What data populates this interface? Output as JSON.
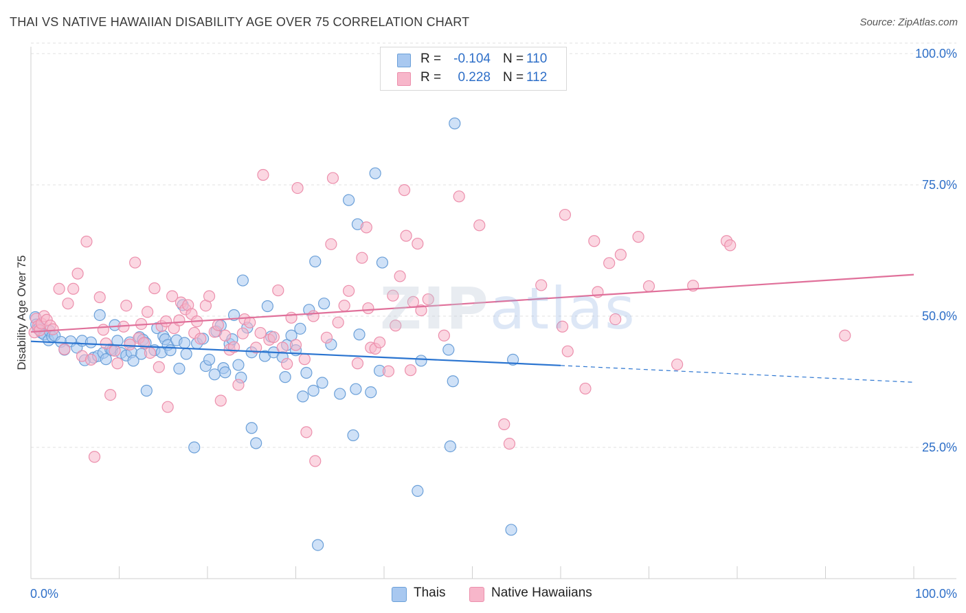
{
  "title": "THAI VS NATIVE HAWAIIAN DISABILITY AGE OVER 75 CORRELATION CHART",
  "source": "Source: ZipAtlas.com",
  "watermark": {
    "zip": "ZIP",
    "atlas": "atlas"
  },
  "legend_stats": [
    {
      "r_label": "R =",
      "r_value": "-0.104",
      "n_label": "N =",
      "n_value": "110",
      "color": "#a8c8f0"
    },
    {
      "r_label": "R =",
      "r_value": "0.228",
      "n_label": "N =",
      "n_value": "112",
      "color": "#f7b6ca"
    }
  ],
  "colors": {
    "thais_fill": "#a8c8f0",
    "thais_stroke": "#6a9fd8",
    "thais_line": "#2a74d0",
    "hawaiian_fill": "#f7b6ca",
    "hawaiian_stroke": "#ec8fac",
    "hawaiian_line": "#e0709a",
    "tick_label": "#2e6fc8",
    "grid": "#e0e0e0"
  },
  "chart_data": {
    "type": "scatter",
    "title": "THAI VS NATIVE HAWAIIAN DISABILITY AGE OVER 75 CORRELATION CHART",
    "xlabel": "",
    "ylabel": "Disability Age Over 75",
    "xlim": [
      0,
      100
    ],
    "ylim": [
      0,
      102
    ],
    "x_tick_labels": [
      "0.0%",
      "100.0%"
    ],
    "y_ticks": [
      25,
      50,
      75,
      100
    ],
    "y_tick_labels": [
      "25.0%",
      "50.0%",
      "75.0%",
      "100.0%"
    ],
    "grid": "horizontal dashed",
    "legend_position": "bottom-center",
    "series": [
      {
        "name": "Thais",
        "r": -0.104,
        "n": 110,
        "trend": {
          "x": [
            0,
            60
          ],
          "y": [
            45.2,
            40.6
          ],
          "dashed_extension_to_x": 100,
          "dashed_end_y": 37.4
        },
        "points": [
          [
            0.5,
            49.8
          ],
          [
            0.6,
            48.4
          ],
          [
            0.8,
            47.6
          ],
          [
            1.0,
            47.9
          ],
          [
            1.2,
            46.8
          ],
          [
            1.5,
            46.5
          ],
          [
            2.0,
            45.4
          ],
          [
            2.1,
            47.2
          ],
          [
            2.4,
            46.1
          ],
          [
            2.7,
            46.3
          ],
          [
            3.4,
            45.1
          ],
          [
            3.8,
            43.6
          ],
          [
            4.5,
            45.2
          ],
          [
            5.2,
            44.0
          ],
          [
            5.8,
            45.3
          ],
          [
            6.1,
            41.6
          ],
          [
            6.8,
            45.0
          ],
          [
            7.1,
            42.1
          ],
          [
            7.6,
            42.4
          ],
          [
            7.8,
            50.2
          ],
          [
            8.2,
            43.0
          ],
          [
            8.5,
            41.8
          ],
          [
            9.0,
            43.7
          ],
          [
            9.2,
            43.5
          ],
          [
            9.5,
            48.3
          ],
          [
            9.8,
            45.3
          ],
          [
            10.2,
            43.0
          ],
          [
            10.8,
            42.5
          ],
          [
            11.2,
            45.0
          ],
          [
            11.4,
            43.1
          ],
          [
            11.6,
            41.5
          ],
          [
            12.3,
            46.0
          ],
          [
            12.5,
            42.8
          ],
          [
            12.7,
            45.5
          ],
          [
            13.0,
            44.9
          ],
          [
            13.1,
            35.8
          ],
          [
            14.0,
            43.5
          ],
          [
            14.3,
            47.7
          ],
          [
            14.8,
            43.1
          ],
          [
            15.0,
            46.2
          ],
          [
            15.2,
            45.6
          ],
          [
            15.5,
            44.5
          ],
          [
            15.8,
            43.5
          ],
          [
            16.5,
            45.4
          ],
          [
            16.8,
            40.0
          ],
          [
            17.2,
            52.1
          ],
          [
            17.4,
            44.9
          ],
          [
            17.6,
            42.8
          ],
          [
            18.5,
            25.0
          ],
          [
            18.8,
            44.8
          ],
          [
            19.5,
            45.7
          ],
          [
            19.8,
            40.5
          ],
          [
            20.2,
            41.7
          ],
          [
            20.8,
            38.9
          ],
          [
            21.0,
            47.1
          ],
          [
            21.5,
            48.2
          ],
          [
            21.8,
            40.1
          ],
          [
            22.0,
            39.3
          ],
          [
            22.5,
            44.7
          ],
          [
            22.8,
            45.6
          ],
          [
            23.0,
            50.2
          ],
          [
            23.5,
            40.7
          ],
          [
            23.8,
            38.3
          ],
          [
            24.0,
            56.8
          ],
          [
            24.5,
            47.8
          ],
          [
            25.0,
            43.1
          ],
          [
            25.0,
            28.7
          ],
          [
            25.5,
            25.8
          ],
          [
            26.5,
            42.4
          ],
          [
            26.8,
            51.9
          ],
          [
            27.2,
            46.1
          ],
          [
            27.5,
            43.1
          ],
          [
            28.5,
            42.2
          ],
          [
            28.8,
            38.4
          ],
          [
            29.0,
            44.5
          ],
          [
            29.5,
            46.3
          ],
          [
            30.0,
            43.5
          ],
          [
            30.5,
            47.6
          ],
          [
            30.8,
            34.7
          ],
          [
            31.2,
            39.2
          ],
          [
            31.5,
            51.2
          ],
          [
            32.0,
            35.8
          ],
          [
            32.2,
            60.4
          ],
          [
            32.5,
            6.4
          ],
          [
            33.0,
            37.3
          ],
          [
            33.2,
            52.4
          ],
          [
            34.0,
            44.6
          ],
          [
            35.0,
            35.2
          ],
          [
            36.0,
            72.1
          ],
          [
            36.5,
            27.3
          ],
          [
            36.8,
            36.1
          ],
          [
            37.0,
            67.5
          ],
          [
            37.2,
            46.5
          ],
          [
            38.5,
            35.5
          ],
          [
            39.0,
            77.2
          ],
          [
            39.5,
            39.6
          ],
          [
            39.8,
            60.2
          ],
          [
            43.8,
            16.7
          ],
          [
            44.2,
            41.5
          ],
          [
            47.3,
            43.6
          ],
          [
            47.5,
            25.2
          ],
          [
            47.8,
            37.6
          ],
          [
            48.0,
            86.7
          ],
          [
            54.4,
            9.3
          ],
          [
            54.6,
            41.7
          ]
        ]
      },
      {
        "name": "Native Hawaiians",
        "r": 0.228,
        "n": 112,
        "trend": {
          "x": [
            0,
            100
          ],
          "y": [
            47.0,
            57.9
          ]
        },
        "points": [
          [
            0.4,
            46.9
          ],
          [
            0.6,
            49.5
          ],
          [
            0.8,
            48.1
          ],
          [
            1.0,
            47.3
          ],
          [
            1.2,
            48.6
          ],
          [
            1.5,
            50.0
          ],
          [
            1.8,
            49.3
          ],
          [
            2.2,
            48.2
          ],
          [
            2.5,
            47.5
          ],
          [
            3.2,
            55.2
          ],
          [
            3.8,
            43.7
          ],
          [
            4.2,
            52.4
          ],
          [
            4.8,
            55.2
          ],
          [
            5.3,
            58.1
          ],
          [
            5.8,
            42.4
          ],
          [
            6.3,
            64.2
          ],
          [
            6.8,
            41.7
          ],
          [
            7.2,
            23.2
          ],
          [
            7.8,
            53.6
          ],
          [
            8.2,
            47.4
          ],
          [
            8.5,
            44.8
          ],
          [
            9.0,
            35.0
          ],
          [
            9.5,
            43.4
          ],
          [
            9.8,
            41.0
          ],
          [
            10.5,
            48.0
          ],
          [
            10.8,
            52.0
          ],
          [
            11.2,
            44.6
          ],
          [
            11.8,
            60.2
          ],
          [
            12.2,
            45.8
          ],
          [
            12.5,
            48.5
          ],
          [
            12.8,
            44.9
          ],
          [
            13.2,
            50.8
          ],
          [
            13.5,
            43.0
          ],
          [
            14.0,
            55.3
          ],
          [
            14.5,
            40.3
          ],
          [
            14.8,
            48.1
          ],
          [
            15.3,
            49.0
          ],
          [
            15.5,
            32.7
          ],
          [
            16.0,
            53.8
          ],
          [
            16.2,
            47.7
          ],
          [
            16.8,
            49.2
          ],
          [
            17.0,
            52.6
          ],
          [
            17.5,
            51.3
          ],
          [
            17.8,
            52.1
          ],
          [
            18.2,
            50.4
          ],
          [
            18.5,
            46.8
          ],
          [
            18.8,
            49.0
          ],
          [
            19.2,
            45.7
          ],
          [
            19.8,
            52.0
          ],
          [
            20.2,
            53.8
          ],
          [
            20.8,
            47.0
          ],
          [
            21.2,
            48.3
          ],
          [
            21.5,
            33.9
          ],
          [
            22.0,
            46.3
          ],
          [
            22.5,
            43.6
          ],
          [
            23.0,
            44.1
          ],
          [
            23.5,
            36.9
          ],
          [
            24.0,
            46.7
          ],
          [
            24.2,
            49.4
          ],
          [
            24.8,
            48.8
          ],
          [
            25.5,
            44.0
          ],
          [
            26.0,
            46.8
          ],
          [
            26.3,
            76.9
          ],
          [
            27.0,
            45.5
          ],
          [
            27.5,
            46.0
          ],
          [
            28.0,
            54.9
          ],
          [
            28.5,
            44.0
          ],
          [
            29.0,
            40.9
          ],
          [
            29.5,
            49.7
          ],
          [
            30.0,
            44.5
          ],
          [
            30.2,
            74.4
          ],
          [
            31.0,
            41.8
          ],
          [
            31.2,
            27.9
          ],
          [
            32.0,
            50.0
          ],
          [
            32.2,
            22.4
          ],
          [
            33.5,
            45.9
          ],
          [
            34.0,
            63.7
          ],
          [
            34.2,
            76.3
          ],
          [
            34.8,
            48.8
          ],
          [
            35.5,
            52.0
          ],
          [
            36.0,
            54.8
          ],
          [
            37.0,
            41.0
          ],
          [
            37.5,
            61.1
          ],
          [
            38.0,
            66.9
          ],
          [
            38.2,
            51.5
          ],
          [
            38.5,
            44.0
          ],
          [
            39.0,
            43.8
          ],
          [
            39.5,
            45.0
          ],
          [
            40.5,
            39.5
          ],
          [
            41.0,
            53.9
          ],
          [
            41.3,
            48.2
          ],
          [
            41.8,
            57.6
          ],
          [
            42.3,
            74.0
          ],
          [
            42.5,
            65.3
          ],
          [
            43.0,
            39.7
          ],
          [
            43.3,
            52.7
          ],
          [
            43.8,
            63.8
          ],
          [
            44.2,
            51.1
          ],
          [
            45.0,
            53.2
          ],
          [
            46.8,
            46.3
          ],
          [
            48.5,
            72.8
          ],
          [
            50.8,
            67.3
          ],
          [
            53.6,
            29.4
          ],
          [
            54.2,
            25.7
          ],
          [
            57.8,
            55.9
          ],
          [
            60.2,
            48.0
          ],
          [
            60.5,
            69.3
          ],
          [
            60.8,
            43.3
          ],
          [
            62.8,
            36.2
          ],
          [
            63.8,
            64.3
          ],
          [
            64.2,
            54.6
          ],
          [
            65.5,
            60.1
          ],
          [
            66.2,
            49.4
          ],
          [
            66.8,
            61.7
          ],
          [
            68.8,
            65.1
          ],
          [
            70.0,
            55.7
          ],
          [
            73.2,
            40.8
          ],
          [
            75.0,
            55.8
          ],
          [
            78.8,
            64.3
          ],
          [
            79.2,
            63.5
          ],
          [
            92.2,
            46.3
          ]
        ]
      }
    ]
  }
}
